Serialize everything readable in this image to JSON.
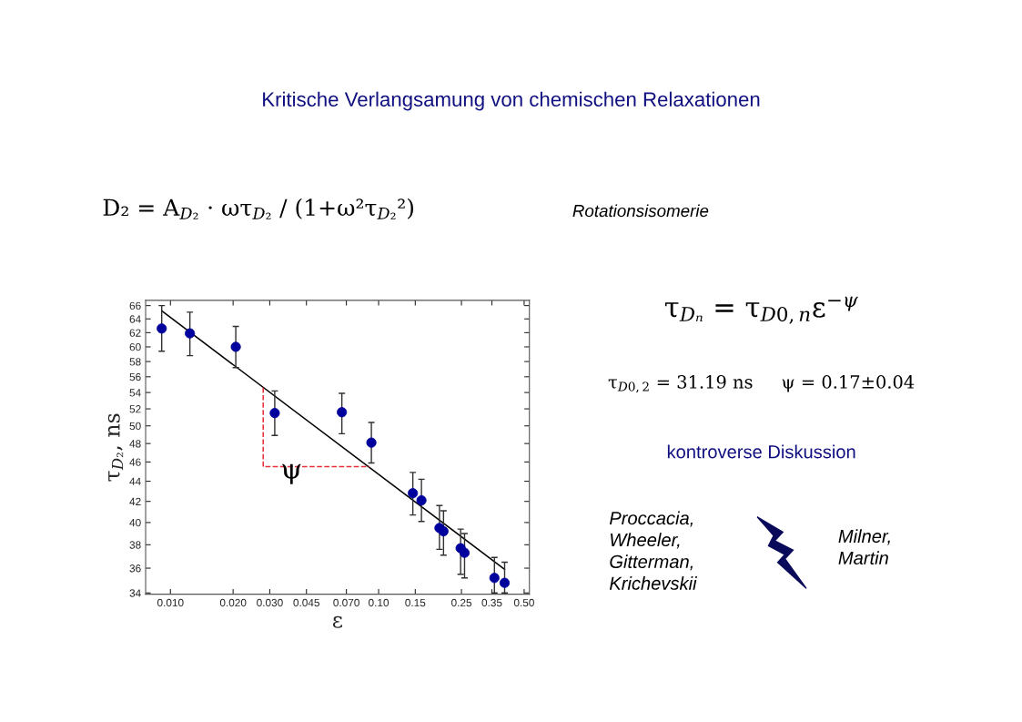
{
  "chart_data": {
    "type": "scatter",
    "title": "Kritische Verlangsamung von chemischen Relaxationen",
    "xlabel": "ε",
    "ylabel": "τ$_{D₂}$, ns",
    "log": "xy",
    "grid": false,
    "marker": "circle",
    "xlim": [
      0.0076,
      0.53
    ],
    "ylim": [
      33.9,
      66.8
    ],
    "xticks": [
      {
        "value": 0.01,
        "label": "0.010"
      },
      {
        "value": 0.02,
        "label": "0.020"
      },
      {
        "value": 0.03,
        "label": "0.030"
      },
      {
        "value": 0.045,
        "label": "0.045"
      },
      {
        "value": 0.07,
        "label": "0.070"
      },
      {
        "value": 0.1,
        "label": "0.10"
      },
      {
        "value": 0.15,
        "label": "0.15"
      },
      {
        "value": 0.25,
        "label": "0.25"
      },
      {
        "value": 0.35,
        "label": "0.35"
      },
      {
        "value": 0.5,
        "label": "0.50"
      }
    ],
    "yticks": [
      34,
      36,
      38,
      40,
      42,
      44,
      46,
      48,
      50,
      52,
      54,
      56,
      58,
      60,
      62,
      64,
      66
    ],
    "series": [
      {
        "color": "#00009c",
        "x": [
          0.00908,
          0.0124,
          0.0206,
          0.0317,
          0.0666,
          0.0923,
          0.146,
          0.1606,
          0.196,
          0.205,
          0.2477,
          0.2587,
          0.36,
          0.403
        ],
        "values": [
          62.6,
          61.9,
          60.0,
          51.5,
          51.6,
          48.1,
          42.8,
          42.1,
          39.5,
          39.2,
          37.7,
          37.3,
          35.2,
          34.8
        ],
        "errors": [
          [
            59.4,
            66.0
          ],
          [
            58.8,
            65.0
          ],
          [
            57.2,
            62.9
          ],
          [
            48.9,
            54.2
          ],
          [
            49.1,
            53.9
          ],
          [
            45.9,
            50.4
          ],
          [
            40.7,
            44.9
          ],
          [
            40.1,
            44.2
          ],
          [
            37.6,
            41.6
          ],
          [
            37.1,
            41.1
          ],
          [
            35.5,
            39.4
          ],
          [
            35.2,
            39.0
          ],
          [
            34.0,
            36.9
          ],
          [
            34.0,
            36.5
          ]
        ]
      },
      {
        "type": "line",
        "color": "#000000",
        "line_style": "solid",
        "marker": "none",
        "x": [
          0.00908,
          0.403
        ],
        "values": [
          65.2,
          35.9
        ]
      },
      {
        "type": "line",
        "color": "#e8303a",
        "line_style": "dashed",
        "marker": "none",
        "x": [
          0.0279,
          0.0279,
          0.0904
        ],
        "values": [
          54.6,
          45.5,
          45.5
        ]
      }
    ],
    "annotations": [
      "ψ",
      "D₂ = A$_{D₂}$ · ωτ$_{D₂}$ / (1+ω²τ$_{D₂}$²)",
      "Rotationsisomerie",
      "τ$_{Dₙ}$ = τ$_{D0,n}$ε$^{−ψ}$",
      "τ$_{D0,2}$ = 31.19 ns     ψ = 0.17±0.04",
      "kontroverse Diskussion",
      "Proccacia,\nWheeler,\nGitterman,\nKrichevskii",
      "Milner,\nMartin"
    ]
  }
}
